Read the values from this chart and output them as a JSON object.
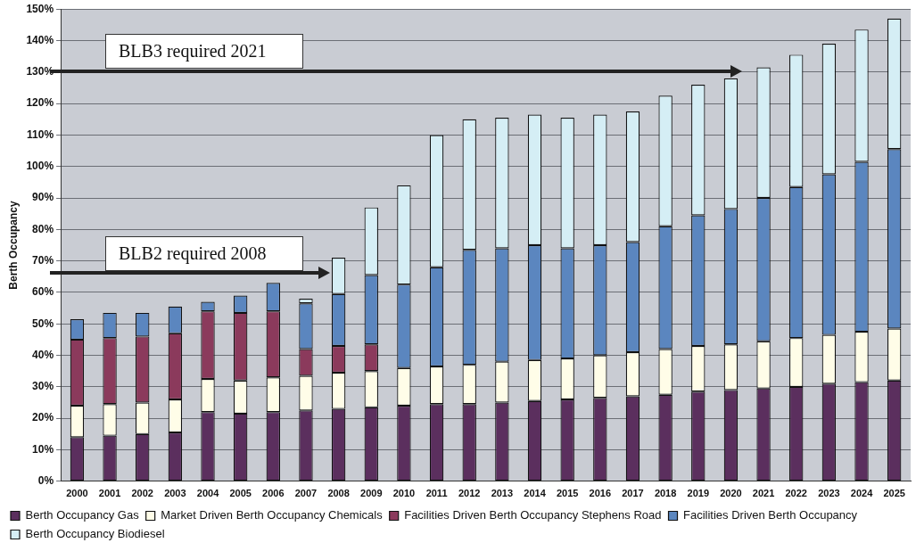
{
  "chart_data": {
    "type": "bar",
    "stacked": true,
    "ylabel": "Berth Occupancy",
    "categories": [
      "2000",
      "2001",
      "2002",
      "2003",
      "2004",
      "2005",
      "2006",
      "2007",
      "2008",
      "2009",
      "2010",
      "2011",
      "2012",
      "2013",
      "2014",
      "2015",
      "2016",
      "2017",
      "2018",
      "2019",
      "2020",
      "2021",
      "2022",
      "2023",
      "2024",
      "2025"
    ],
    "series": [
      {
        "name": "Berth Occupancy Gas",
        "color": "#5b2f5e",
        "values": [
          14,
          14.5,
          15,
          15.5,
          22,
          21.5,
          22,
          22.5,
          23,
          23.5,
          24,
          24.5,
          24.5,
          25,
          25.5,
          26,
          26.5,
          27,
          27.5,
          28.5,
          29,
          29.5,
          30,
          31,
          31.5,
          32
        ]
      },
      {
        "name": "Market Driven Berth Occupancy Chemicals",
        "color": "#fffde8",
        "values": [
          10,
          10,
          10,
          10.5,
          10.5,
          10.5,
          11,
          11,
          11.5,
          11.5,
          12,
          12,
          12.5,
          13,
          13,
          13,
          13.5,
          14,
          14.5,
          14.5,
          14.5,
          15,
          15.5,
          15.5,
          16,
          16.5
        ]
      },
      {
        "name": "Facilities Driven Berth Occupancy Stephens Road",
        "color": "#8b3a5c",
        "values": [
          21,
          21,
          21,
          21,
          21.5,
          21.5,
          21,
          8.5,
          8.5,
          8.5,
          null,
          null,
          null,
          null,
          null,
          null,
          null,
          null,
          null,
          null,
          null,
          null,
          null,
          null,
          null,
          null
        ]
      },
      {
        "name": "Facilities Driven Berth Occupancy",
        "color": "#5b86bf",
        "values": [
          6.5,
          8,
          7.5,
          8.5,
          3,
          5.5,
          9,
          14.5,
          16.5,
          22,
          26.5,
          31.5,
          36.5,
          36,
          36.5,
          35,
          35,
          35,
          39,
          41.5,
          43,
          45.5,
          48,
          51,
          54,
          57
        ]
      },
      {
        "name": "Berth Occupancy Biodiesel",
        "color": "#d5eef5",
        "values": [
          null,
          null,
          null,
          null,
          null,
          null,
          null,
          1.5,
          11.5,
          21.5,
          31.5,
          42,
          41.5,
          41.5,
          41.5,
          41.5,
          41.5,
          41.5,
          41.5,
          41.5,
          41.5,
          41.5,
          42,
          41.5,
          42,
          41.5
        ]
      }
    ],
    "ylim": [
      0,
      150
    ],
    "yticks": [
      {
        "value": 0,
        "label": "0%"
      },
      {
        "value": 10,
        "label": "10%"
      },
      {
        "value": 20,
        "label": "20%"
      },
      {
        "value": 30,
        "label": "30%"
      },
      {
        "value": 40,
        "label": "40%"
      },
      {
        "value": 50,
        "label": "50%"
      },
      {
        "value": 60,
        "label": "60%"
      },
      {
        "value": 70,
        "label": "70%"
      },
      {
        "value": 80,
        "label": "80%"
      },
      {
        "value": 90,
        "label": "90%"
      },
      {
        "value": 100,
        "label": "100%"
      },
      {
        "value": 110,
        "label": "110%"
      },
      {
        "value": 120,
        "label": "120%"
      },
      {
        "value": 130,
        "label": "130%"
      },
      {
        "value": 140,
        "label": "140%"
      },
      {
        "value": 150,
        "label": "150%"
      }
    ],
    "grid": "y",
    "legend": "bottom",
    "annotations": [
      "BLB3 required 2021",
      "BLB2 required 2008"
    ]
  }
}
